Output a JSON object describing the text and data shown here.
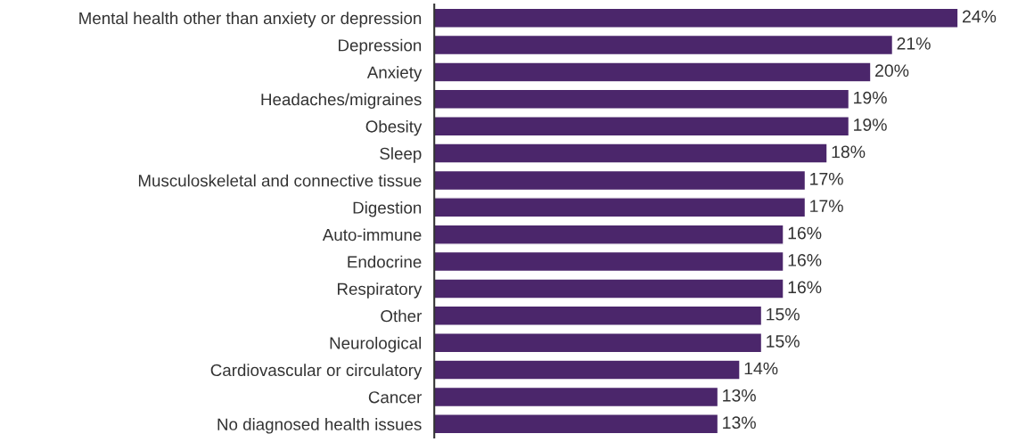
{
  "chart_data": {
    "type": "bar",
    "orientation": "horizontal",
    "categories": [
      "Mental health other than anxiety or depression",
      "Depression",
      "Anxiety",
      "Headaches/migraines",
      "Obesity",
      "Sleep",
      "Musculoskeletal and connective tissue",
      "Digestion",
      "Auto-immune",
      "Endocrine",
      "Respiratory",
      "Other",
      "Neurological",
      "Cardiovascular or circulatory",
      "Cancer",
      "No diagnosed health issues"
    ],
    "values": [
      24,
      21,
      20,
      19,
      19,
      18,
      17,
      17,
      16,
      16,
      16,
      15,
      15,
      14,
      13,
      13
    ],
    "value_labels": [
      "24%",
      "21%",
      "20%",
      "19%",
      "19%",
      "18%",
      "17%",
      "17%",
      "16%",
      "16%",
      "16%",
      "15%",
      "15%",
      "14%",
      "13%",
      "13%"
    ],
    "color": "#4b266b",
    "grid": false,
    "legend": false
  }
}
